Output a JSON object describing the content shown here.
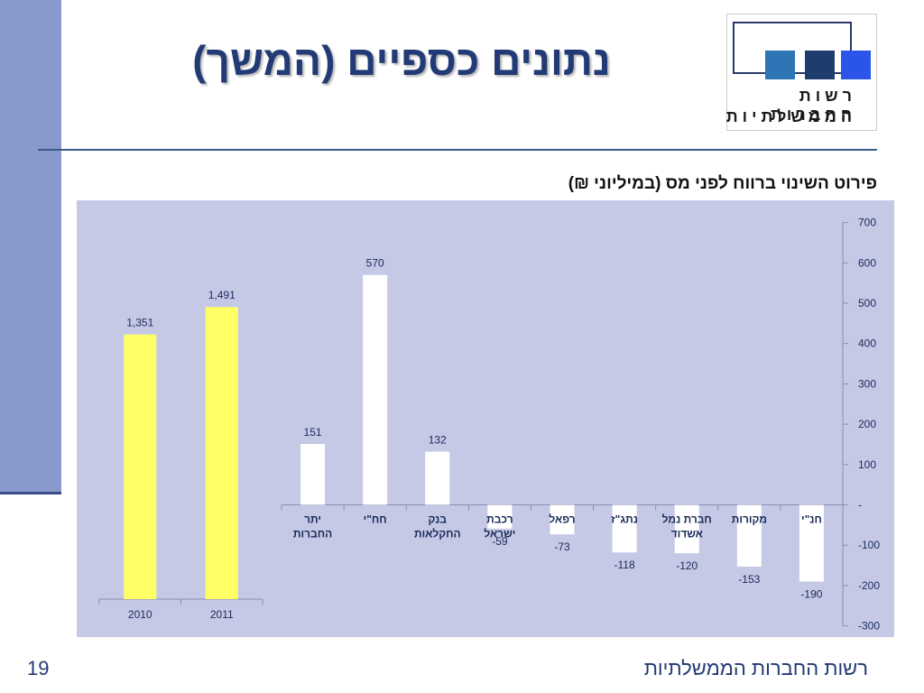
{
  "slide": {
    "title": "נתונים כספיים (המשך)",
    "chart_title": "פירוט השינוי ברווח לפני מס (במיליוני ₪)",
    "footer": "רשות החברות הממשלתיות",
    "page_number": "19"
  },
  "logo": {
    "line1": "רשות החברות",
    "line2": "הממשלתיות"
  },
  "colors": {
    "band": "#8a99cc",
    "title": "#223a75",
    "plot_bg": "#c5c9e6",
    "yellow_bar": "#ffff66",
    "white_bar": "#ffffff",
    "logo_squares": [
      "#2e75b6",
      "#1f3c6e",
      "#2a55e8"
    ]
  },
  "chart_data": [
    {
      "type": "bar",
      "categories": [
        "2010",
        "2011"
      ],
      "values": [
        1351,
        1491
      ],
      "value_labels": [
        "1,351",
        "1,491"
      ],
      "bar_color": "#ffff66"
    },
    {
      "type": "bar",
      "categories": [
        "יתר החברות",
        "חח\"י",
        "בנק החקלאות",
        "רכבת ישראל",
        "רפאל",
        "נתג\"ז",
        "חברת נמל אשדוד",
        "מקורות",
        "חנ\"י"
      ],
      "category_lines": [
        [
          "יתר",
          "החברות"
        ],
        [
          "חח\"י"
        ],
        [
          "בנק",
          "החקלאות"
        ],
        [
          "רכבת",
          "ישראל"
        ],
        [
          "רפאל"
        ],
        [
          "נתג\"ז"
        ],
        [
          "חברת נמל",
          "אשדוד"
        ],
        [
          "מקורות"
        ],
        [
          "חנ\"י"
        ]
      ],
      "values": [
        151,
        570,
        132,
        -59,
        -73,
        -118,
        -120,
        -153,
        -190
      ],
      "value_labels": [
        "151",
        "570",
        "132",
        "-59",
        "-73",
        "-118",
        "-120",
        "-153",
        "-190"
      ],
      "ylim": [
        -300,
        700
      ],
      "y_ticks": [
        700,
        600,
        500,
        400,
        300,
        200,
        100,
        0,
        -100,
        -200,
        -300
      ],
      "y_tick_labels": [
        "700",
        "600",
        "500",
        "400",
        "300",
        "200",
        "100",
        "-",
        "-100",
        "-200",
        "-300"
      ],
      "y_axis_side": "right",
      "bar_color": "#ffffff"
    }
  ]
}
